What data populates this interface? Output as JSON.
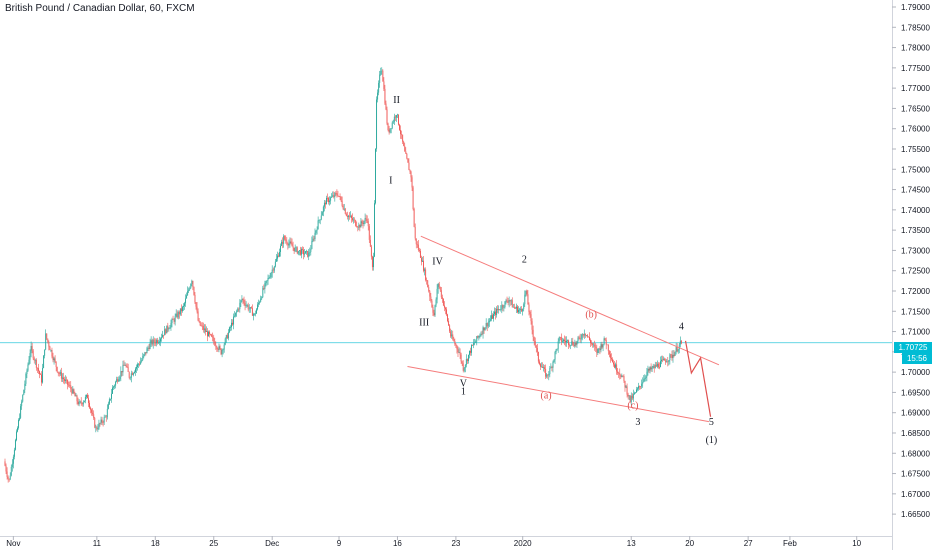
{
  "header": {
    "title": "British Pound / Canadian Dollar, 60, FXCM"
  },
  "price_badge": {
    "price": "1.70725",
    "countdown": "15:56"
  },
  "chart_data": {
    "type": "candlestick",
    "symbol": "British Pound / Canadian Dollar",
    "interval": "60",
    "source": "FXCM",
    "ylim": [
      1.662,
      1.792
    ],
    "y_ticks": [
      "1.79000",
      "1.78500",
      "1.78000",
      "1.77500",
      "1.77000",
      "1.76500",
      "1.76000",
      "1.75500",
      "1.75000",
      "1.74500",
      "1.74000",
      "1.73500",
      "1.73000",
      "1.72500",
      "1.72000",
      "1.71500",
      "1.71000",
      "1.70500",
      "1.70000",
      "1.69500",
      "1.69000",
      "1.68500",
      "1.68000",
      "1.67500",
      "1.67000",
      "1.66500"
    ],
    "y_tick_values": [
      1.79,
      1.785,
      1.78,
      1.775,
      1.77,
      1.765,
      1.76,
      1.755,
      1.75,
      1.745,
      1.74,
      1.735,
      1.73,
      1.725,
      1.72,
      1.715,
      1.71,
      1.705,
      1.7,
      1.695,
      1.69,
      1.685,
      1.68,
      1.675,
      1.67,
      1.665
    ],
    "x_ticks": [
      "Nov",
      "11",
      "18",
      "25",
      "Dec",
      "9",
      "16",
      "23",
      "2020",
      "13",
      "20",
      "27",
      "Feb",
      "10"
    ],
    "x_tick_days": [
      1,
      11,
      18,
      25,
      32,
      40,
      47,
      54,
      62,
      75,
      82,
      89,
      94,
      102
    ],
    "path_nodes": [
      {
        "d": 0,
        "p": 1.678
      },
      {
        "d": 0.6,
        "p": 1.673
      },
      {
        "d": 2,
        "p": 1.691
      },
      {
        "d": 3.2,
        "p": 1.706
      },
      {
        "d": 4.5,
        "p": 1.698
      },
      {
        "d": 5,
        "p": 1.709
      },
      {
        "d": 6.5,
        "p": 1.7
      },
      {
        "d": 8,
        "p": 1.696
      },
      {
        "d": 9,
        "p": 1.692
      },
      {
        "d": 10,
        "p": 1.694
      },
      {
        "d": 11,
        "p": 1.686
      },
      {
        "d": 12.2,
        "p": 1.689
      },
      {
        "d": 13,
        "p": 1.696
      },
      {
        "d": 14.5,
        "p": 1.702
      },
      {
        "d": 15,
        "p": 1.699
      },
      {
        "d": 16.5,
        "p": 1.703
      },
      {
        "d": 17.5,
        "p": 1.707
      },
      {
        "d": 18.5,
        "p": 1.708
      },
      {
        "d": 20,
        "p": 1.712
      },
      {
        "d": 21.5,
        "p": 1.716
      },
      {
        "d": 22.5,
        "p": 1.723
      },
      {
        "d": 23.3,
        "p": 1.712
      },
      {
        "d": 25,
        "p": 1.708
      },
      {
        "d": 26,
        "p": 1.705
      },
      {
        "d": 27.3,
        "p": 1.712
      },
      {
        "d": 28.5,
        "p": 1.718
      },
      {
        "d": 30,
        "p": 1.714
      },
      {
        "d": 31,
        "p": 1.72
      },
      {
        "d": 32.5,
        "p": 1.727
      },
      {
        "d": 33.5,
        "p": 1.733
      },
      {
        "d": 35,
        "p": 1.73
      },
      {
        "d": 36.5,
        "p": 1.729
      },
      {
        "d": 37.5,
        "p": 1.736
      },
      {
        "d": 38.5,
        "p": 1.742
      },
      {
        "d": 40,
        "p": 1.744
      },
      {
        "d": 41,
        "p": 1.739
      },
      {
        "d": 42.5,
        "p": 1.736
      },
      {
        "d": 43.5,
        "p": 1.738
      },
      {
        "d": 44.2,
        "p": 1.724
      },
      {
        "d": 44.6,
        "p": 1.766
      },
      {
        "d": 45.2,
        "p": 1.776
      },
      {
        "d": 46,
        "p": 1.759
      },
      {
        "d": 47,
        "p": 1.764
      },
      {
        "d": 48,
        "p": 1.754
      },
      {
        "d": 48.8,
        "p": 1.748
      },
      {
        "d": 49.2,
        "p": 1.733
      },
      {
        "d": 50,
        "p": 1.728
      },
      {
        "d": 51,
        "p": 1.719
      },
      {
        "d": 51.5,
        "p": 1.714
      },
      {
        "d": 52,
        "p": 1.722
      },
      {
        "d": 53,
        "p": 1.714
      },
      {
        "d": 53.5,
        "p": 1.709
      },
      {
        "d": 54.5,
        "p": 1.705
      },
      {
        "d": 55,
        "p": 1.701
      },
      {
        "d": 56,
        "p": 1.706
      },
      {
        "d": 57.5,
        "p": 1.711
      },
      {
        "d": 59,
        "p": 1.715
      },
      {
        "d": 60.5,
        "p": 1.718
      },
      {
        "d": 61,
        "p": 1.716
      },
      {
        "d": 62,
        "p": 1.715
      },
      {
        "d": 62.5,
        "p": 1.72
      },
      {
        "d": 63.2,
        "p": 1.711
      },
      {
        "d": 64,
        "p": 1.703
      },
      {
        "d": 65,
        "p": 1.699
      },
      {
        "d": 65.5,
        "p": 1.701
      },
      {
        "d": 66.5,
        "p": 1.708
      },
      {
        "d": 68.5,
        "p": 1.707
      },
      {
        "d": 69.5,
        "p": 1.71
      },
      {
        "d": 71,
        "p": 1.705
      },
      {
        "d": 72,
        "p": 1.708
      },
      {
        "d": 73,
        "p": 1.702
      },
      {
        "d": 74,
        "p": 1.699
      },
      {
        "d": 75,
        "p": 1.693
      },
      {
        "d": 76,
        "p": 1.696
      },
      {
        "d": 77,
        "p": 1.7
      },
      {
        "d": 78.5,
        "p": 1.702
      },
      {
        "d": 80,
        "p": 1.704
      },
      {
        "d": 81,
        "p": 1.707
      }
    ],
    "trendlines": [
      {
        "from": {
          "d": 49.8,
          "p": 1.7335
        },
        "to": {
          "d": 85.5,
          "p": 1.7018
        },
        "color": "#f57c7c"
      },
      {
        "from": {
          "d": 48.2,
          "p": 1.7014
        },
        "to": {
          "d": 84.3,
          "p": 1.6878
        },
        "color": "#f57c7c"
      }
    ],
    "projection": {
      "points": [
        {
          "d": 81.5,
          "p": 1.7077
        },
        {
          "d": 82.2,
          "p": 1.6998
        },
        {
          "d": 83.3,
          "p": 1.7035
        },
        {
          "d": 84.5,
          "p": 1.689
        }
      ],
      "color": "#e0504f"
    },
    "wave_labels": [
      {
        "text": "I",
        "d": 46.2,
        "p": 1.7465,
        "color": "#131722"
      },
      {
        "text": "II",
        "d": 46.9,
        "p": 1.7663,
        "color": "#131722"
      },
      {
        "text": "III",
        "d": 50.2,
        "p": 1.7115,
        "color": "#131722"
      },
      {
        "text": "IV",
        "d": 51.8,
        "p": 1.7265,
        "color": "#131722"
      },
      {
        "text": "V",
        "d": 54.9,
        "p": 1.6965,
        "color": "#131722"
      },
      {
        "text": "1",
        "d": 54.9,
        "p": 1.6945,
        "color": "#131722"
      },
      {
        "text": "2",
        "d": 62.2,
        "p": 1.727,
        "color": "#131722"
      },
      {
        "text": "(a)",
        "d": 64.8,
        "p": 1.6935,
        "color": "#e0504f"
      },
      {
        "text": "(b)",
        "d": 70.2,
        "p": 1.7135,
        "color": "#e0504f"
      },
      {
        "text": "(c)",
        "d": 75.2,
        "p": 1.691,
        "color": "#e0504f"
      },
      {
        "text": "3",
        "d": 75.8,
        "p": 1.687,
        "color": "#131722"
      },
      {
        "text": "4",
        "d": 81.0,
        "p": 1.7105,
        "color": "#131722"
      },
      {
        "text": "5",
        "d": 84.6,
        "p": 1.687,
        "color": "#131722"
      },
      {
        "text": "(1)",
        "d": 84.6,
        "p": 1.6825,
        "color": "#131722"
      }
    ],
    "current_price": 1.70725,
    "colors": {
      "up": "#26a69a",
      "down": "#ef5350",
      "price_line": "#00bcd4",
      "trendline": "#f57c7c",
      "axis_text": "#131722"
    }
  }
}
